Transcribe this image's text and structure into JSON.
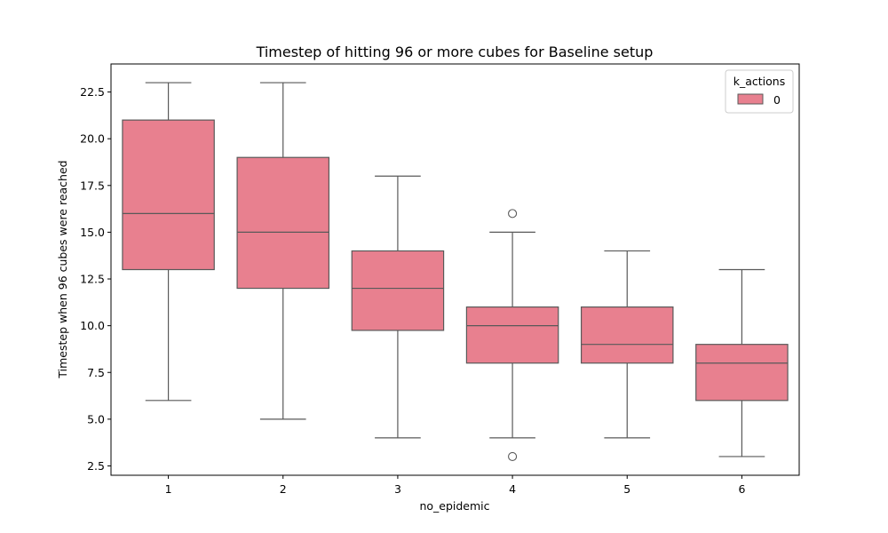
{
  "chart_data": {
    "type": "box",
    "title": "Timestep of hitting 96 or more cubes for Baseline setup",
    "xlabel": "no_epidemic",
    "ylabel": "Timestep when 96 cubes were reached",
    "categories": [
      "1",
      "2",
      "3",
      "4",
      "5",
      "6"
    ],
    "ylim": [
      2.0,
      24.0
    ],
    "yticks": [
      "2.5",
      "5.0",
      "7.5",
      "10.0",
      "12.5",
      "15.0",
      "17.5",
      "20.0",
      "22.5"
    ],
    "legend": {
      "title": "k_actions",
      "entries": [
        "0"
      ],
      "placement": "top-right"
    },
    "series": [
      {
        "name": "0",
        "color": "#e8808f",
        "boxes": [
          {
            "whisker_low": 6,
            "q1": 13,
            "median": 16,
            "q3": 21,
            "whisker_high": 23,
            "outliers": []
          },
          {
            "whisker_low": 5,
            "q1": 12,
            "median": 15,
            "q3": 19,
            "whisker_high": 23,
            "outliers": []
          },
          {
            "whisker_low": 4,
            "q1": 9.75,
            "median": 12,
            "q3": 14,
            "whisker_high": 18,
            "outliers": []
          },
          {
            "whisker_low": 4,
            "q1": 8,
            "median": 10,
            "q3": 11,
            "whisker_high": 15,
            "outliers": [
              3,
              16
            ]
          },
          {
            "whisker_low": 4,
            "q1": 8,
            "median": 9,
            "q3": 11,
            "whisker_high": 14,
            "outliers": []
          },
          {
            "whisker_low": 3,
            "q1": 6,
            "median": 8,
            "q3": 9,
            "whisker_high": 13,
            "outliers": []
          }
        ]
      }
    ],
    "grid": false
  }
}
